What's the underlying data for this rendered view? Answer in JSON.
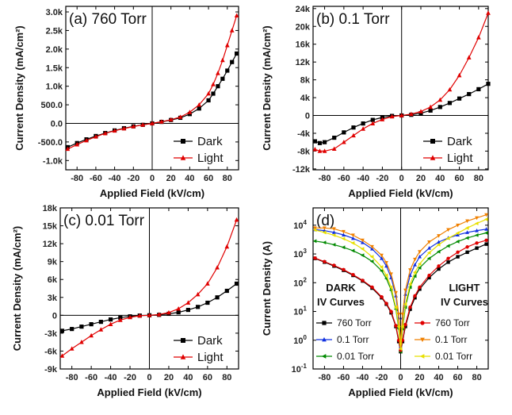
{
  "chart_data": [
    {
      "id": "a",
      "type": "scatter",
      "title": "(a) 760 Torr",
      "xlabel": "Applied Field (kV/cm)",
      "ylabel": "Current Density (mA/cm²)",
      "xlim": [
        -92,
        92
      ],
      "ylim": [
        -1250,
        3150
      ],
      "xticks": [
        -80,
        -60,
        -40,
        -20,
        0,
        20,
        40,
        60,
        80
      ],
      "yticks": [
        -1000,
        -500,
        0,
        500,
        1000,
        1500,
        2000,
        2500,
        3000
      ],
      "ytick_labels": [
        "-1.0k",
        "-500.0",
        "0.0",
        "500.0",
        "1.0k",
        "1.5k",
        "2.0k",
        "2.5k",
        "3.0k"
      ],
      "grid": false,
      "legend_position": "bottom-right",
      "series": [
        {
          "name": "Dark",
          "color": "#000000",
          "marker": "square",
          "x": [
            -90,
            -80,
            -70,
            -60,
            -50,
            -40,
            -30,
            -20,
            -10,
            0,
            10,
            20,
            30,
            40,
            50,
            60,
            65,
            70,
            75,
            80,
            85,
            90
          ],
          "y": [
            -640,
            -530,
            -430,
            -340,
            -260,
            -190,
            -130,
            -80,
            -40,
            0,
            40,
            90,
            150,
            250,
            400,
            620,
            800,
            1000,
            1200,
            1420,
            1650,
            1880
          ]
        },
        {
          "name": "Light",
          "color": "#e00000",
          "marker": "triangle",
          "x": [
            -90,
            -80,
            -70,
            -60,
            -50,
            -40,
            -30,
            -20,
            -10,
            0,
            10,
            20,
            30,
            40,
            50,
            60,
            65,
            70,
            75,
            80,
            85,
            90
          ],
          "y": [
            -690,
            -570,
            -460,
            -360,
            -270,
            -200,
            -140,
            -85,
            -40,
            0,
            45,
            100,
            170,
            300,
            500,
            800,
            1050,
            1350,
            1700,
            2100,
            2500,
            2900
          ]
        }
      ]
    },
    {
      "id": "b",
      "type": "scatter",
      "title": "(b) 0.1 Torr",
      "xlabel": "Applied Field (kV/cm)",
      "ylabel": "Current Density (mA/cm²)",
      "xlim": [
        -92,
        90
      ],
      "ylim": [
        -12200,
        24500
      ],
      "xticks": [
        -80,
        -60,
        -40,
        -20,
        0,
        20,
        40,
        60,
        80
      ],
      "yticks": [
        -12000,
        -8000,
        -4000,
        0,
        4000,
        8000,
        12000,
        16000,
        20000,
        24000
      ],
      "ytick_labels": [
        "-12k",
        "-8k",
        "-4k",
        "0",
        "4k",
        "8k",
        "12k",
        "16k",
        "20k",
        "24k"
      ],
      "grid": false,
      "legend_position": "bottom-right",
      "series": [
        {
          "name": "Dark",
          "color": "#000000",
          "marker": "square",
          "x": [
            -90,
            -85,
            -80,
            -70,
            -60,
            -50,
            -40,
            -30,
            -20,
            -10,
            0,
            10,
            20,
            30,
            40,
            50,
            60,
            70,
            80,
            90
          ],
          "y": [
            -5800,
            -6200,
            -6000,
            -5000,
            -3800,
            -2700,
            -1800,
            -1000,
            -450,
            -100,
            0,
            150,
            500,
            1100,
            1900,
            2800,
            3800,
            4800,
            5900,
            7100
          ]
        },
        {
          "name": "Light",
          "color": "#e00000",
          "marker": "triangle",
          "x": [
            -90,
            -85,
            -80,
            -70,
            -60,
            -50,
            -40,
            -30,
            -20,
            -10,
            0,
            10,
            20,
            30,
            40,
            50,
            60,
            70,
            80,
            90
          ],
          "y": [
            -7600,
            -8000,
            -8000,
            -7500,
            -6000,
            -4500,
            -3000,
            -1800,
            -900,
            -250,
            0,
            300,
            900,
            1900,
            3500,
            5800,
            9000,
            13000,
            17500,
            23000
          ]
        }
      ]
    },
    {
      "id": "c",
      "type": "scatter",
      "title": "(c) 0.01 Torr",
      "xlabel": "Applied Field (kV/cm)",
      "ylabel": "Current Density (mA/cm²)",
      "xlim": [
        -92,
        92
      ],
      "ylim": [
        -9000,
        18000
      ],
      "xticks": [
        -80,
        -60,
        -40,
        -20,
        0,
        20,
        40,
        60,
        80
      ],
      "yticks": [
        -9000,
        -6000,
        -3000,
        0,
        3000,
        6000,
        9000,
        12000,
        15000,
        18000
      ],
      "ytick_labels": [
        "-9k",
        "-6k",
        "-3k",
        "0",
        "3k",
        "6k",
        "9k",
        "12k",
        "15k",
        "18k"
      ],
      "grid": false,
      "legend_position": "bottom-right",
      "series": [
        {
          "name": "Dark",
          "color": "#000000",
          "marker": "square",
          "x": [
            -90,
            -80,
            -70,
            -60,
            -50,
            -40,
            -30,
            -20,
            -10,
            0,
            10,
            20,
            30,
            40,
            50,
            60,
            70,
            80,
            90
          ],
          "y": [
            -2600,
            -2300,
            -1900,
            -1500,
            -1100,
            -700,
            -400,
            -180,
            -50,
            0,
            70,
            250,
            500,
            900,
            1400,
            2100,
            3000,
            4100,
            5300
          ]
        },
        {
          "name": "Light",
          "color": "#e00000",
          "marker": "triangle",
          "x": [
            -90,
            -80,
            -70,
            -60,
            -50,
            -40,
            -30,
            -20,
            -10,
            0,
            10,
            20,
            30,
            40,
            50,
            60,
            70,
            80,
            90
          ],
          "y": [
            -6800,
            -5600,
            -4500,
            -3400,
            -2400,
            -1500,
            -800,
            -350,
            -80,
            0,
            120,
            450,
            1100,
            2100,
            3500,
            5300,
            8000,
            11500,
            16000
          ]
        }
      ]
    },
    {
      "id": "d",
      "type": "scatter",
      "title": "(d)",
      "xlabel": "Applied Field (kV/cm)",
      "ylabel": "Current Density (A)",
      "xlim": [
        -92,
        92
      ],
      "ylim": [
        0.1,
        40000
      ],
      "log_y": true,
      "xticks": [
        -80,
        -60,
        -40,
        -20,
        0,
        20,
        40,
        60,
        80
      ],
      "yticks": [
        0.1,
        1,
        10,
        100,
        1000,
        10000
      ],
      "ytick_exponents": [
        "-1",
        "0",
        "1",
        "2",
        "3",
        "4"
      ],
      "grid": false,
      "groups": [
        "DARK IV Curves",
        "LIGHT IV Curves"
      ],
      "group_labels": {
        "dark_1": "DARK",
        "dark_2": "IV Curves",
        "light_1": "LIGHT",
        "light_2": "IV Curves"
      },
      "legend_position": "bottom",
      "series": [
        {
          "name": "760 Torr",
          "group": "DARK",
          "color": "#000000",
          "marker": "square",
          "x": [
            -90,
            -80,
            -70,
            -60,
            -50,
            -40,
            -30,
            -20,
            -15,
            -10,
            -5,
            -2,
            0,
            2,
            5,
            10,
            15,
            20,
            30,
            40,
            50,
            60,
            70,
            80,
            90
          ],
          "y": [
            700,
            520,
            380,
            270,
            180,
            115,
            65,
            30,
            18,
            9,
            3,
            0.9,
            0.4,
            0.9,
            3,
            12,
            30,
            60,
            150,
            300,
            520,
            800,
            1150,
            1600,
            2200
          ]
        },
        {
          "name": "0.1 Torr",
          "group": "DARK",
          "color": "#1030e0",
          "marker": "triangle",
          "x": [
            -90,
            -80,
            -70,
            -60,
            -50,
            -40,
            -30,
            -20,
            -15,
            -10,
            -5,
            -2,
            0,
            2,
            5,
            10,
            15,
            20,
            30,
            40,
            50,
            60,
            70,
            80,
            90
          ],
          "y": [
            7000,
            6500,
            5600,
            4600,
            3500,
            2500,
            1500,
            700,
            380,
            150,
            35,
            6,
            0.6,
            6,
            40,
            180,
            420,
            800,
            1600,
            2600,
            3600,
            4600,
            5600,
            6500,
            7300
          ]
        },
        {
          "name": "0.01 Torr",
          "group": "DARK",
          "color": "#008a00",
          "marker": "triangle-left",
          "x": [
            -90,
            -80,
            -70,
            -60,
            -50,
            -40,
            -30,
            -20,
            -15,
            -10,
            -5,
            -2,
            0,
            2,
            5,
            10,
            15,
            20,
            30,
            40,
            50,
            60,
            70,
            80,
            90
          ],
          "y": [
            2800,
            2500,
            2100,
            1700,
            1300,
            900,
            550,
            260,
            140,
            55,
            12,
            2.5,
            0.4,
            2.5,
            14,
            70,
            170,
            330,
            700,
            1200,
            1900,
            2700,
            3600,
            4500,
            5400
          ]
        },
        {
          "name": "760 Torr",
          "group": "LIGHT",
          "color": "#e00000",
          "marker": "circle",
          "x": [
            -90,
            -80,
            -70,
            -60,
            -50,
            -40,
            -30,
            -20,
            -15,
            -10,
            -5,
            -2,
            0,
            2,
            5,
            10,
            15,
            20,
            30,
            40,
            50,
            60,
            70,
            80,
            90
          ],
          "y": [
            720,
            540,
            400,
            285,
            190,
            120,
            70,
            32,
            19,
            10,
            3.2,
            1,
            0.45,
            1,
            3.5,
            14,
            35,
            70,
            180,
            380,
            700,
            1150,
            1750,
            2400,
            3000
          ]
        },
        {
          "name": "0.1 Torr",
          "group": "LIGHT",
          "color": "#f08000",
          "marker": "triangle-down",
          "x": [
            -90,
            -80,
            -70,
            -60,
            -50,
            -40,
            -30,
            -20,
            -15,
            -10,
            -5,
            -2,
            0,
            2,
            5,
            10,
            15,
            20,
            30,
            40,
            50,
            60,
            70,
            80,
            90
          ],
          "y": [
            8000,
            8000,
            7500,
            6000,
            4500,
            3000,
            1800,
            900,
            500,
            200,
            45,
            8,
            0.7,
            8,
            55,
            280,
            650,
            1200,
            2600,
            4300,
            7000,
            10000,
            14000,
            18000,
            23000
          ]
        },
        {
          "name": "0.01 Torr",
          "group": "LIGHT",
          "color": "#e8e000",
          "marker": "triangle-left",
          "x": [
            -90,
            -80,
            -70,
            -60,
            -50,
            -40,
            -30,
            -20,
            -15,
            -10,
            -5,
            -2,
            0,
            2,
            5,
            10,
            15,
            20,
            30,
            40,
            50,
            60,
            70,
            80,
            90
          ],
          "y": [
            6800,
            5600,
            4500,
            3400,
            2400,
            1500,
            800,
            350,
            180,
            70,
            14,
            3,
            0.5,
            3,
            18,
            90,
            230,
            450,
            1100,
            2100,
            3500,
            5300,
            8000,
            11500,
            16000
          ]
        }
      ]
    }
  ]
}
